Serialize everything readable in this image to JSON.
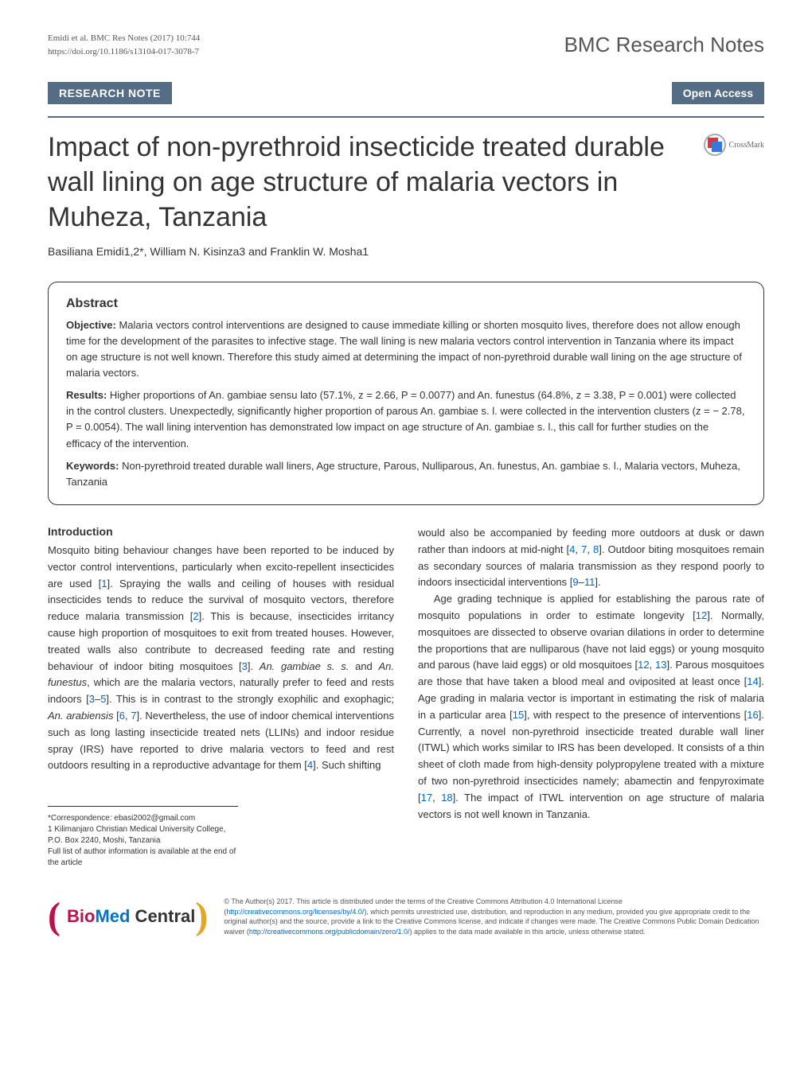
{
  "header": {
    "citation": "Emidi et al. BMC Res Notes (2017) 10:744",
    "doi": "https://doi.org/10.1186/s13104-017-3078-7",
    "journal": "BMC Research Notes"
  },
  "article_type_bar": {
    "type": "RESEARCH NOTE",
    "access": "Open Access"
  },
  "crossmark": {
    "label": "CrossMark"
  },
  "title": "Impact of non-pyrethroid insecticide treated durable wall lining on age structure of malaria vectors in Muheza, Tanzania",
  "authors": "Basiliana Emidi1,2*, William N. Kisinza3 and Franklin W. Mosha1",
  "abstract": {
    "heading": "Abstract",
    "objective_label": "Objective:",
    "objective_text": " Malaria vectors control interventions are designed to cause immediate killing or shorten mosquito lives, therefore does not allow enough time for the development of the parasites to infective stage. The wall lining is new malaria vectors control intervention in Tanzania where its impact on age structure is not well known. Therefore this study aimed at determining the impact of non-pyrethroid durable wall lining on the age structure of malaria vectors.",
    "results_label": "Results:",
    "results_text": " Higher proportions of An. gambiae sensu lato (57.1%, z = 2.66, P = 0.0077) and An. funestus (64.8%, z = 3.38, P = 0.001) were collected in the control clusters. Unexpectedly, significantly higher proportion of parous An. gambiae s. l. were collected in the intervention clusters (z = − 2.78, P = 0.0054). The wall lining intervention has demonstrated low impact on age structure of An. gambiae s. l., this call for further studies on the efficacy of the intervention.",
    "keywords_label": "Keywords:",
    "keywords_text": " Non-pyrethroid treated durable wall liners, Age structure, Parous, Nulliparous, An. funestus, An. gambiae s. l., Malaria vectors, Muheza, Tanzania"
  },
  "intro_heading": "Introduction",
  "col1_html": "Mosquito biting behaviour changes have been reported to be induced by vector control interventions, particularly when excito-repellent insecticides are used [<span class=\"ref\">1</span>]. Spraying the walls and ceiling of houses with residual insecticides tends to reduce the survival of mosquito vectors, therefore reduce malaria transmission [<span class=\"ref\">2</span>]. This is because, insecticides irritancy cause high proportion of mosquitoes to exit from treated houses. However, treated walls also contribute to decreased feeding rate and resting behaviour of indoor biting mosquitoes [<span class=\"ref\">3</span>]. <em>An. gambiae s. s.</em> and <em>An. funestus</em>, which are the malaria vectors, naturally prefer to feed and rests indoors [<span class=\"ref\">3</span>–<span class=\"ref\">5</span>]. This is in contrast to the strongly exophilic and exophagic; <em>An. arabiensis</em> [<span class=\"ref\">6</span>, <span class=\"ref\">7</span>]. Nevertheless, the use of indoor chemical interventions such as long lasting insecticide treated nets (LLINs) and indoor residue spray (IRS) have reported to drive malaria vectors to feed and rest outdoors resulting in a reproductive advantage for them [<span class=\"ref\">4</span>]. Such shifting",
  "col2_html": "would also be accompanied by feeding more outdoors at dusk or dawn rather than indoors at mid-night [<span class=\"ref\">4</span>, <span class=\"ref\">7</span>, <span class=\"ref\">8</span>]. Outdoor biting mosquitoes remain as secondary sources of malaria transmission as they respond poorly to indoors insecticidal interventions [<span class=\"ref\">9</span>–<span class=\"ref\">11</span>].<br>&nbsp;&nbsp;&nbsp;Age grading technique is applied for establishing the parous rate of mosquito populations in order to estimate longevity [<span class=\"ref\">12</span>]. Normally, mosquitoes are dissected to observe ovarian dilations in order to determine the proportions that are nulliparous (have not laid eggs) or young mosquito and parous (have laid eggs) or old mosquitoes [<span class=\"ref\">12</span>, <span class=\"ref\">13</span>]. Parous mosquitoes are those that have taken a blood meal and oviposited at least once [<span class=\"ref\">14</span>]. Age grading in malaria vector is important in estimating the risk of malaria in a particular area [<span class=\"ref\">15</span>], with respect to the presence of interventions [<span class=\"ref\">16</span>]. Currently, a novel non-pyrethroid insecticide treated durable wall liner (ITWL) which works similar to IRS has been developed. It consists of a thin sheet of cloth made from high-density polypropylene treated with a mixture of two non-pyrethroid insecticides namely; abamectin and fenpyroximate [<span class=\"ref\">17</span>, <span class=\"ref\">18</span>]. The impact of ITWL intervention on age structure of malaria vectors is not well known in Tanzania.",
  "footnotes": {
    "correspondence": "*Correspondence: ebasi2002@gmail.com",
    "affiliation": "1 Kilimanjaro Christian Medical University College, P.O. Box 2240, Moshi, Tanzania",
    "full_list": "Full list of author information is available at the end of the article"
  },
  "logo": {
    "bio": "Bio",
    "med": "Med",
    "central": " Central"
  },
  "license_html": "© The Author(s) 2017. This article is distributed under the terms of the Creative Commons Attribution 4.0 International License (<span class=\"link\">http://creativecommons.org/licenses/by/4.0/</span>), which permits unrestricted use, distribution, and reproduction in any medium, provided you give appropriate credit to the original author(s) and the source, provide a link to the Creative Commons license, and indicate if changes were made. The Creative Commons Public Domain Dedication waiver (<span class=\"link\">http://creativecommons.org/publicdomain/zero/1.0/</span>) applies to the data made available in this article, unless otherwise stated.",
  "colors": {
    "bar_bg": "#546c84",
    "ref_link": "#0066cc",
    "bmc_pink": "#b8144b",
    "bmc_blue": "#0075c9",
    "bmc_yellow": "#e4a627"
  }
}
